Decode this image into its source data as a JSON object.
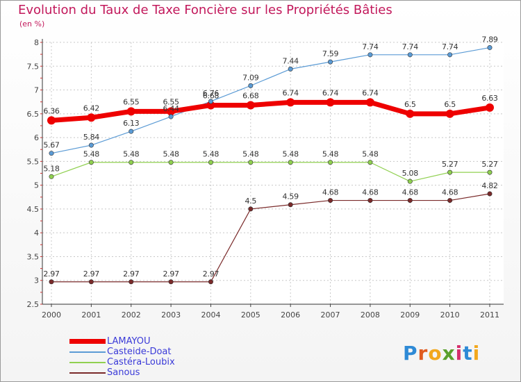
{
  "chart_data": {
    "type": "line",
    "title": "Evolution du Taux de Taxe Foncière sur les Propriétés Bâties",
    "subtitle": "(en %)",
    "categories": [
      "2000",
      "2001",
      "2002",
      "2003",
      "2004",
      "2005",
      "2006",
      "2007",
      "2008",
      "2009",
      "2010",
      "2011"
    ],
    "yticks": [
      "2.5",
      "3",
      "3.5",
      "4",
      "4.5",
      "5",
      "5.5",
      "6",
      "6.5",
      "7",
      "7.5",
      "8"
    ],
    "ylim": [
      2.5,
      8
    ],
    "grid": true,
    "legend_position": "bottom-left",
    "series": [
      {
        "name": "LAMAYOU",
        "color": "#ee0000",
        "emphasis": true,
        "values": [
          6.36,
          6.42,
          6.55,
          6.55,
          6.68,
          6.68,
          6.74,
          6.74,
          6.74,
          6.5,
          6.5,
          6.63
        ],
        "labels": [
          "6.36",
          "6.42",
          "6.55",
          "6.55",
          "6.68",
          "6.68",
          "6.74",
          "6.74",
          "6.74",
          "6.5",
          "6.5",
          "6.63"
        ]
      },
      {
        "name": "Casteide-Doat",
        "color": "#5b9bd5",
        "emphasis": false,
        "values": [
          5.67,
          5.84,
          6.13,
          6.44,
          6.76,
          7.09,
          7.44,
          7.59,
          7.74,
          7.74,
          7.74,
          7.89
        ],
        "labels": [
          "5.67",
          "5.84",
          "6.13",
          "6.44",
          "6.76",
          "7.09",
          "7.44",
          "7.59",
          "7.74",
          "7.74",
          "7.74",
          "7.89"
        ]
      },
      {
        "name": "Castéra-Loubix",
        "color": "#90d050",
        "emphasis": false,
        "values": [
          5.18,
          5.48,
          5.48,
          5.48,
          5.48,
          5.48,
          5.48,
          5.48,
          5.48,
          5.08,
          5.27,
          5.27
        ],
        "labels": [
          "5.18",
          "5.48",
          "5.48",
          "5.48",
          "5.48",
          "5.48",
          "5.48",
          "5.48",
          "5.48",
          "5.08",
          "5.27",
          "5.27"
        ]
      },
      {
        "name": "Sanous",
        "color": "#7a2a2a",
        "emphasis": false,
        "values": [
          2.97,
          2.97,
          2.97,
          2.97,
          2.97,
          4.5,
          4.59,
          4.68,
          4.68,
          4.68,
          4.68,
          4.82
        ],
        "labels": [
          "2.97",
          "2.97",
          "2.97",
          "2.97",
          "2.97",
          "4.5",
          "4.59",
          "4.68",
          "4.68",
          "4.68",
          "4.68",
          "4.82"
        ]
      }
    ]
  },
  "logo": {
    "letters": [
      "P",
      "r",
      "o",
      "x",
      "i",
      "t",
      "i"
    ],
    "colors": [
      "#2e8ad6",
      "#e05b1f",
      "#f2a81d",
      "#5aa02c",
      "#d62f6b",
      "#2e8ad6",
      "#f2a81d"
    ]
  }
}
